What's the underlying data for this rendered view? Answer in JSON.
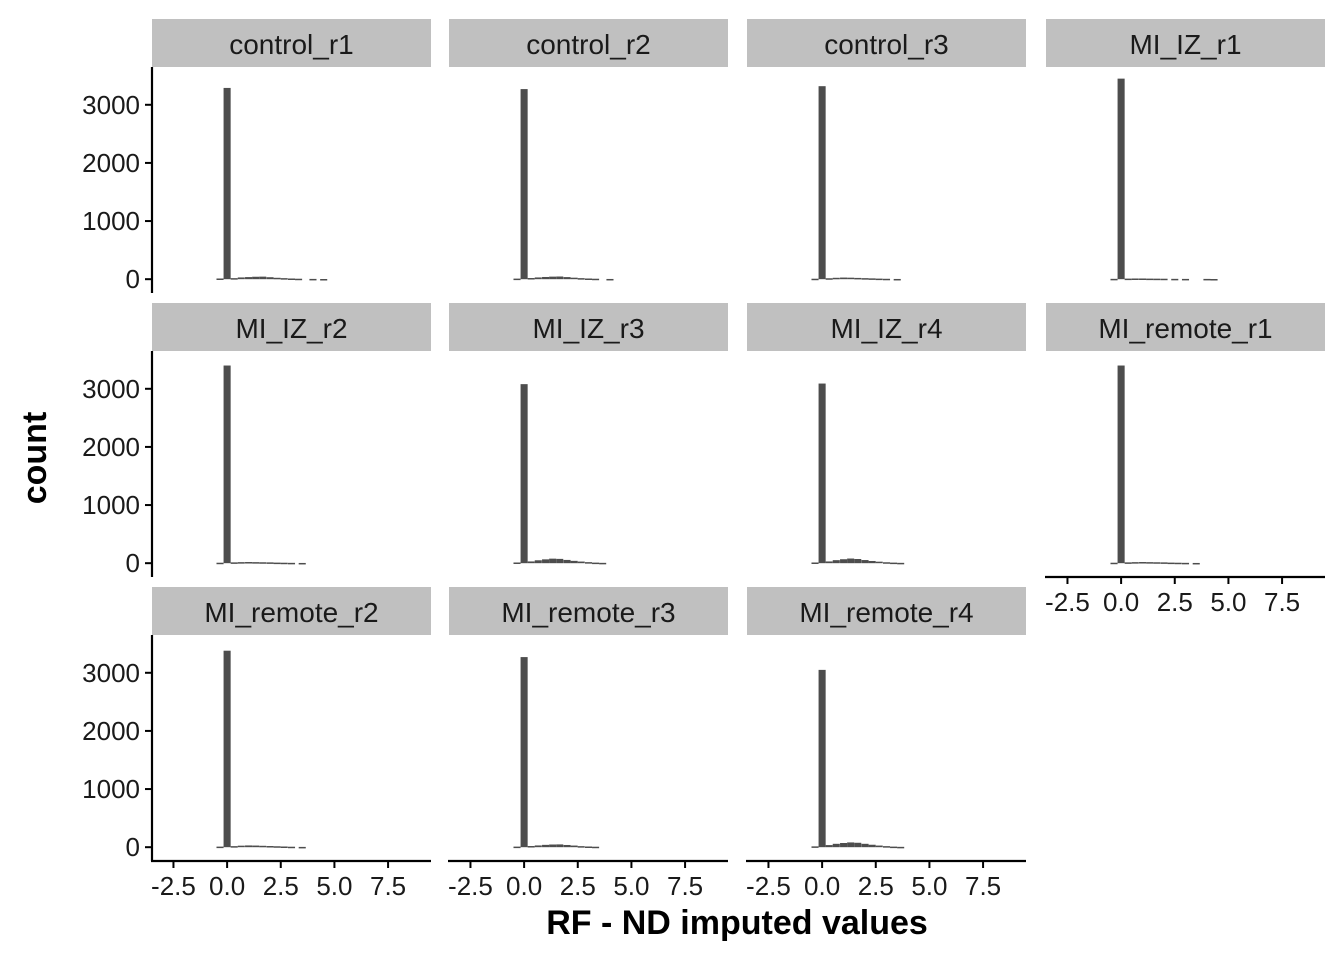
{
  "chart_data": {
    "type": "bar",
    "subtype": "faceted-histogram",
    "xlabel": "RF - ND imputed values",
    "ylabel": "count",
    "xlim": [
      -3.5,
      9.5
    ],
    "ylim": [
      -100,
      3650
    ],
    "x_ticks": [
      -2.5,
      0.0,
      2.5,
      5.0,
      7.5
    ],
    "x_tick_labels": [
      "-2.5",
      "0.0",
      "2.5",
      "5.0",
      "7.5"
    ],
    "y_ticks": [
      0,
      1000,
      2000,
      3000
    ],
    "y_tick_labels": [
      "0",
      "1000",
      "2000",
      "3000"
    ],
    "bin_width": 0.33,
    "bar_color": "#4d4d4d",
    "strip_color": "#c0c0c0",
    "layout": {
      "columns": 4,
      "rows": 3
    },
    "facets": [
      {
        "name": "control_r1",
        "bins": [
          {
            "x": -0.33,
            "y": 12
          },
          {
            "x": 0.0,
            "y": 3290
          },
          {
            "x": 0.33,
            "y": 18
          },
          {
            "x": 0.66,
            "y": 30
          },
          {
            "x": 1.0,
            "y": 36
          },
          {
            "x": 1.33,
            "y": 42
          },
          {
            "x": 1.66,
            "y": 44
          },
          {
            "x": 2.0,
            "y": 34
          },
          {
            "x": 2.33,
            "y": 24
          },
          {
            "x": 2.66,
            "y": 18
          },
          {
            "x": 3.0,
            "y": 12
          },
          {
            "x": 3.33,
            "y": 8
          },
          {
            "x": 4.0,
            "y": 5
          },
          {
            "x": 4.5,
            "y": 3
          }
        ]
      },
      {
        "name": "control_r2",
        "bins": [
          {
            "x": -0.33,
            "y": 10
          },
          {
            "x": 0.0,
            "y": 3270
          },
          {
            "x": 0.33,
            "y": 20
          },
          {
            "x": 0.66,
            "y": 30
          },
          {
            "x": 1.0,
            "y": 38
          },
          {
            "x": 1.33,
            "y": 44
          },
          {
            "x": 1.66,
            "y": 46
          },
          {
            "x": 2.0,
            "y": 36
          },
          {
            "x": 2.33,
            "y": 26
          },
          {
            "x": 2.66,
            "y": 18
          },
          {
            "x": 3.0,
            "y": 12
          },
          {
            "x": 3.33,
            "y": 8
          },
          {
            "x": 4.0,
            "y": 4
          }
        ]
      },
      {
        "name": "control_r3",
        "bins": [
          {
            "x": -0.33,
            "y": 8
          },
          {
            "x": 0.0,
            "y": 3320
          },
          {
            "x": 0.33,
            "y": 16
          },
          {
            "x": 0.66,
            "y": 24
          },
          {
            "x": 1.0,
            "y": 28
          },
          {
            "x": 1.33,
            "y": 26
          },
          {
            "x": 1.66,
            "y": 22
          },
          {
            "x": 2.0,
            "y": 18
          },
          {
            "x": 2.33,
            "y": 14
          },
          {
            "x": 2.66,
            "y": 10
          },
          {
            "x": 3.0,
            "y": 7
          },
          {
            "x": 3.5,
            "y": 4
          }
        ]
      },
      {
        "name": "MI_IZ_r1",
        "bins": [
          {
            "x": -0.33,
            "y": 6
          },
          {
            "x": 0.0,
            "y": 3450
          },
          {
            "x": 0.33,
            "y": 10
          },
          {
            "x": 0.66,
            "y": 12
          },
          {
            "x": 1.0,
            "y": 12
          },
          {
            "x": 1.33,
            "y": 10
          },
          {
            "x": 1.66,
            "y": 9
          },
          {
            "x": 2.0,
            "y": 8
          },
          {
            "x": 2.5,
            "y": 6
          },
          {
            "x": 3.0,
            "y": 5
          },
          {
            "x": 4.0,
            "y": 5
          },
          {
            "x": 4.33,
            "y": 3
          }
        ]
      },
      {
        "name": "MI_IZ_r2",
        "bins": [
          {
            "x": -0.33,
            "y": 8
          },
          {
            "x": 0.0,
            "y": 3400
          },
          {
            "x": 0.33,
            "y": 14
          },
          {
            "x": 0.66,
            "y": 18
          },
          {
            "x": 1.0,
            "y": 20
          },
          {
            "x": 1.33,
            "y": 18
          },
          {
            "x": 1.66,
            "y": 16
          },
          {
            "x": 2.0,
            "y": 14
          },
          {
            "x": 2.33,
            "y": 10
          },
          {
            "x": 2.66,
            "y": 8
          },
          {
            "x": 3.0,
            "y": 6
          },
          {
            "x": 3.5,
            "y": 4
          }
        ]
      },
      {
        "name": "MI_IZ_r3",
        "bins": [
          {
            "x": -0.33,
            "y": 12
          },
          {
            "x": 0.0,
            "y": 3080
          },
          {
            "x": 0.33,
            "y": 30
          },
          {
            "x": 0.66,
            "y": 50
          },
          {
            "x": 1.0,
            "y": 66
          },
          {
            "x": 1.33,
            "y": 78
          },
          {
            "x": 1.66,
            "y": 74
          },
          {
            "x": 2.0,
            "y": 56
          },
          {
            "x": 2.33,
            "y": 40
          },
          {
            "x": 2.66,
            "y": 28
          },
          {
            "x": 3.0,
            "y": 18
          },
          {
            "x": 3.33,
            "y": 10
          },
          {
            "x": 3.66,
            "y": 6
          }
        ]
      },
      {
        "name": "MI_IZ_r4",
        "bins": [
          {
            "x": -0.33,
            "y": 12
          },
          {
            "x": 0.0,
            "y": 3090
          },
          {
            "x": 0.33,
            "y": 30
          },
          {
            "x": 0.66,
            "y": 52
          },
          {
            "x": 1.0,
            "y": 68
          },
          {
            "x": 1.33,
            "y": 80
          },
          {
            "x": 1.66,
            "y": 72
          },
          {
            "x": 2.0,
            "y": 54
          },
          {
            "x": 2.33,
            "y": 38
          },
          {
            "x": 2.66,
            "y": 26
          },
          {
            "x": 3.0,
            "y": 16
          },
          {
            "x": 3.33,
            "y": 10
          },
          {
            "x": 3.66,
            "y": 6
          }
        ]
      },
      {
        "name": "MI_remote_r1",
        "bins": [
          {
            "x": -0.33,
            "y": 8
          },
          {
            "x": 0.0,
            "y": 3400
          },
          {
            "x": 0.33,
            "y": 14
          },
          {
            "x": 0.66,
            "y": 18
          },
          {
            "x": 1.0,
            "y": 20
          },
          {
            "x": 1.33,
            "y": 18
          },
          {
            "x": 1.66,
            "y": 16
          },
          {
            "x": 2.0,
            "y": 14
          },
          {
            "x": 2.33,
            "y": 10
          },
          {
            "x": 2.66,
            "y": 8
          },
          {
            "x": 3.0,
            "y": 6
          },
          {
            "x": 3.5,
            "y": 4
          }
        ]
      },
      {
        "name": "MI_remote_r2",
        "bins": [
          {
            "x": -0.33,
            "y": 10
          },
          {
            "x": 0.0,
            "y": 3380
          },
          {
            "x": 0.33,
            "y": 18
          },
          {
            "x": 0.66,
            "y": 26
          },
          {
            "x": 1.0,
            "y": 30
          },
          {
            "x": 1.33,
            "y": 28
          },
          {
            "x": 1.66,
            "y": 24
          },
          {
            "x": 2.0,
            "y": 20
          },
          {
            "x": 2.33,
            "y": 16
          },
          {
            "x": 2.66,
            "y": 12
          },
          {
            "x": 3.0,
            "y": 8
          },
          {
            "x": 3.5,
            "y": 5
          }
        ]
      },
      {
        "name": "MI_remote_r3",
        "bins": [
          {
            "x": -0.33,
            "y": 10
          },
          {
            "x": 0.0,
            "y": 3270
          },
          {
            "x": 0.33,
            "y": 20
          },
          {
            "x": 0.66,
            "y": 30
          },
          {
            "x": 1.0,
            "y": 40
          },
          {
            "x": 1.33,
            "y": 46
          },
          {
            "x": 1.66,
            "y": 48
          },
          {
            "x": 2.0,
            "y": 38
          },
          {
            "x": 2.33,
            "y": 28
          },
          {
            "x": 2.66,
            "y": 18
          },
          {
            "x": 3.0,
            "y": 12
          },
          {
            "x": 3.33,
            "y": 8
          }
        ]
      },
      {
        "name": "MI_remote_r4",
        "bins": [
          {
            "x": -0.33,
            "y": 14
          },
          {
            "x": 0.0,
            "y": 3050
          },
          {
            "x": 0.33,
            "y": 36
          },
          {
            "x": 0.66,
            "y": 58
          },
          {
            "x": 1.0,
            "y": 72
          },
          {
            "x": 1.33,
            "y": 82
          },
          {
            "x": 1.66,
            "y": 76
          },
          {
            "x": 2.0,
            "y": 58
          },
          {
            "x": 2.33,
            "y": 42
          },
          {
            "x": 2.66,
            "y": 28
          },
          {
            "x": 3.0,
            "y": 18
          },
          {
            "x": 3.33,
            "y": 10
          },
          {
            "x": 3.66,
            "y": 6
          }
        ]
      }
    ]
  }
}
